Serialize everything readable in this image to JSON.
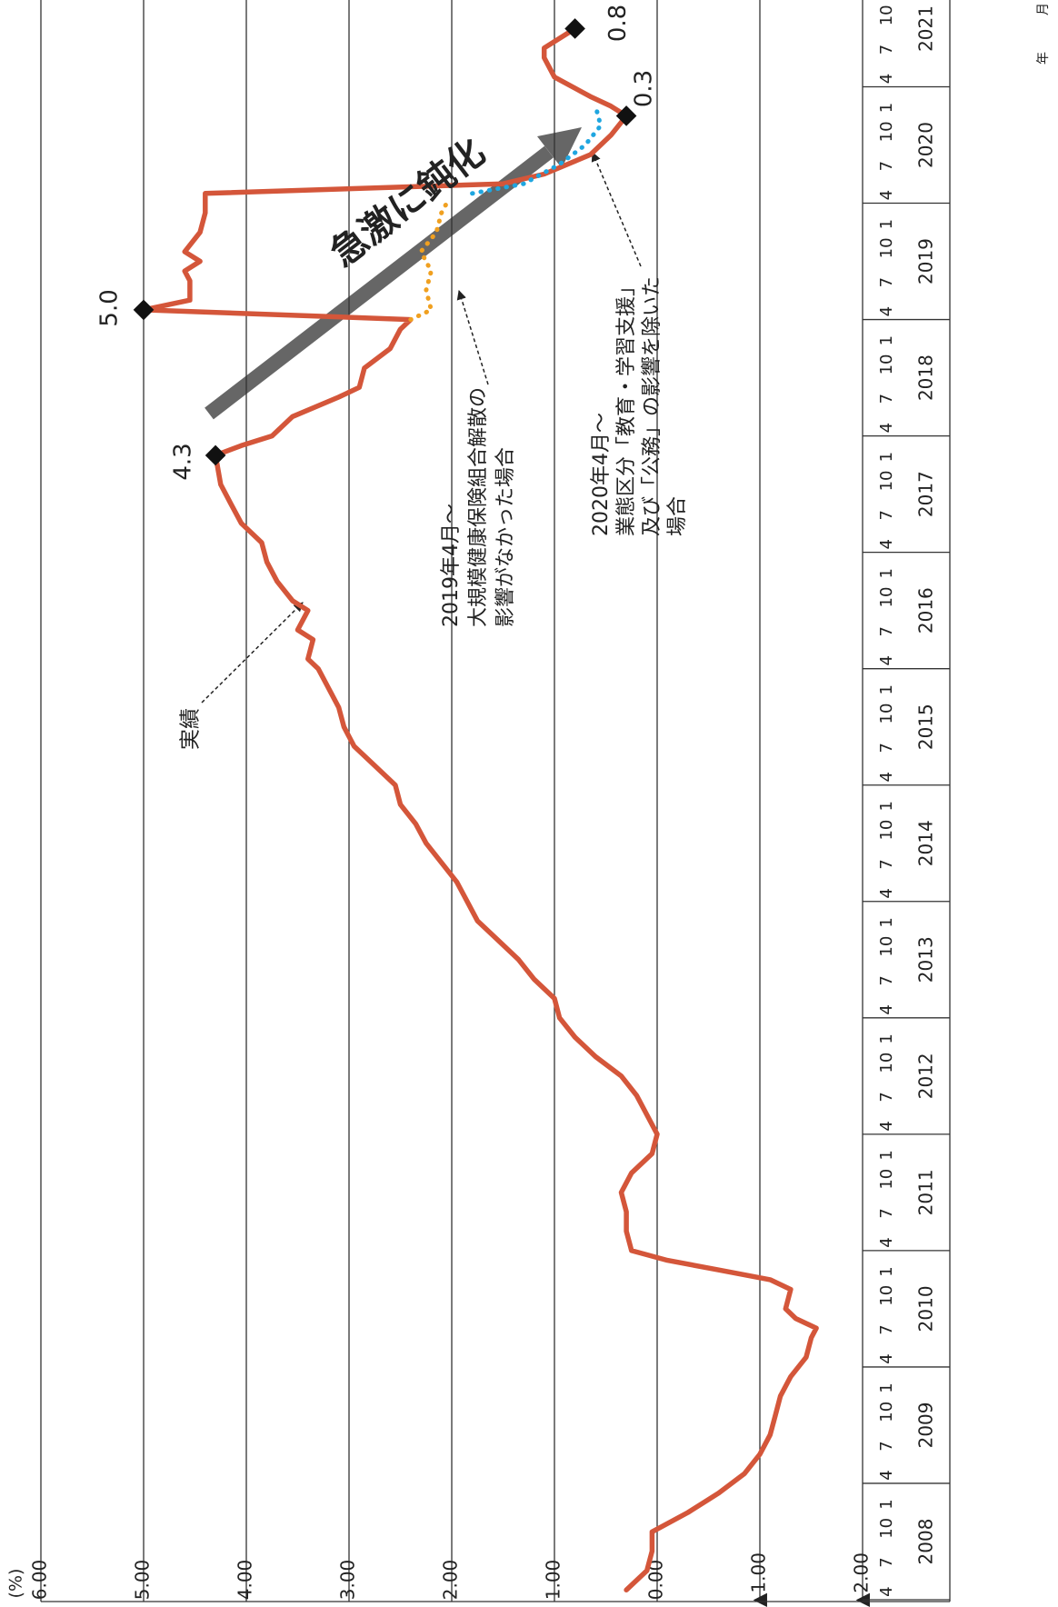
{
  "chart_data": {
    "type": "line",
    "y_unit": "(%)",
    "ylim": [
      -2,
      6
    ],
    "yticks": [
      {
        "value": 6,
        "label": "6.00"
      },
      {
        "value": 5,
        "label": "5.00"
      },
      {
        "value": 4,
        "label": "4.00"
      },
      {
        "value": 3,
        "label": "3.00"
      },
      {
        "value": 2,
        "label": "2.00"
      },
      {
        "value": 1,
        "label": "1.00"
      },
      {
        "value": 0,
        "label": "0.00"
      },
      {
        "value": -1,
        "label": "▲1.00"
      },
      {
        "value": -2,
        "label": "▲2.00"
      }
    ],
    "grid": true,
    "month_row_label": "月",
    "year_row_label": "年",
    "months": [
      "4",
      "7",
      "10",
      "1"
    ],
    "fiscal_years": [
      2008,
      2009,
      2010,
      2011,
      2012,
      2013,
      2014,
      2015,
      2016,
      2017,
      2018,
      2019,
      2020,
      2021
    ],
    "series": [
      {
        "name": "実績",
        "color": "#d4563a",
        "dash": "solid",
        "x": [
          "2008-05",
          "2008-07",
          "2008-09",
          "2008-11",
          "2009-01",
          "2009-03",
          "2009-05",
          "2009-07",
          "2009-09",
          "2009-11",
          "2010-01",
          "2010-03",
          "2010-05",
          "2010-07",
          "2010-08",
          "2010-09",
          "2010-10",
          "2010-12",
          "2011-01",
          "2011-02",
          "2011-03",
          "2011-04",
          "2011-06",
          "2011-08",
          "2011-10",
          "2011-12",
          "2012-02",
          "2012-04",
          "2012-06",
          "2012-08",
          "2012-10",
          "2012-12",
          "2013-02",
          "2013-04",
          "2013-06",
          "2013-08",
          "2013-10",
          "2013-12",
          "2014-02",
          "2014-04",
          "2014-06",
          "2014-08",
          "2014-10",
          "2014-12",
          "2015-02",
          "2015-04",
          "2015-06",
          "2015-08",
          "2015-10",
          "2015-12",
          "2016-02",
          "2016-04",
          "2016-05",
          "2016-07",
          "2016-08",
          "2016-10",
          "2016-11",
          "2017-01",
          "2017-03",
          "2017-05",
          "2017-07",
          "2017-09",
          "2017-11",
          "2018-02",
          "2018-03",
          "2018-04",
          "2018-06",
          "2018-08",
          "2018-09",
          "2018-11",
          "2019-01",
          "2019-03",
          "2019-04",
          "2019-05",
          "2019-06",
          "2019-08",
          "2019-09",
          "2019-10",
          "2019-11",
          "2020-01",
          "2020-03",
          "2020-05",
          "2020-06",
          "2020-07",
          "2020-09",
          "2020-11",
          "2021-01",
          "2021-02",
          "2021-03",
          "2021-05",
          "2021-07",
          "2021-08",
          "2021-10"
        ],
        "values": [
          0.3,
          0.1,
          0.05,
          0.05,
          -0.3,
          -0.6,
          -0.85,
          -1.0,
          -1.1,
          -1.15,
          -1.2,
          -1.3,
          -1.45,
          -1.5,
          -1.55,
          -1.35,
          -1.25,
          -1.3,
          -1.1,
          -0.6,
          -0.1,
          0.25,
          0.3,
          0.3,
          0.35,
          0.25,
          0.05,
          0.0,
          0.1,
          0.2,
          0.35,
          0.6,
          0.8,
          0.95,
          1.0,
          1.2,
          1.35,
          1.55,
          1.75,
          1.85,
          1.95,
          2.1,
          2.25,
          2.35,
          2.5,
          2.55,
          2.75,
          2.95,
          3.05,
          3.1,
          3.2,
          3.3,
          3.4,
          3.35,
          3.5,
          3.4,
          3.55,
          3.7,
          3.8,
          3.85,
          4.05,
          4.15,
          4.25,
          4.3,
          4.05,
          3.75,
          3.55,
          3.1,
          2.9,
          2.85,
          2.6,
          2.5,
          2.4,
          5.0,
          4.55,
          4.55,
          4.6,
          4.45,
          4.6,
          4.45,
          4.4,
          4.4,
          1.5,
          1.1,
          0.65,
          0.45,
          0.3,
          0.45,
          0.65,
          1.0,
          1.1,
          1.1,
          0.8
        ]
      },
      {
        "color": "#f0a020",
        "dash": "dotted",
        "x": [
          "2019-04",
          "2019-05",
          "2019-07",
          "2019-09",
          "2019-11",
          "2020-01",
          "2020-03",
          "2020-04"
        ],
        "values": [
          2.4,
          2.2,
          2.25,
          2.2,
          2.3,
          2.15,
          2.1,
          2.05
        ]
      },
      {
        "color": "#1fa6e0",
        "dash": "dotted",
        "x": [
          "2020-05",
          "2020-06",
          "2020-08",
          "2020-10",
          "2020-12",
          "2021-02"
        ],
        "values": [
          1.8,
          1.3,
          0.95,
          0.7,
          0.55,
          0.6
        ]
      }
    ],
    "markers": {
      "x": [
        "2018-02",
        "2019-05",
        "2021-01",
        "2021-10"
      ],
      "values": [
        4.3,
        5,
        0.3,
        0.8
      ],
      "value_labels": [
        "4.3",
        "5.0",
        "0.3",
        "0.8"
      ]
    },
    "annotations": [
      {
        "lines": [
          "2019年4月～",
          "大規模健康保険組合解散の",
          "影響がなかった場合"
        ]
      },
      {
        "lines": [
          "2020年4月～",
          "業態区分「教育・学習支援」",
          "及び「公務」の影響を除いた",
          "場合"
        ]
      }
    ],
    "arrow_label": "急激に鈍化"
  }
}
